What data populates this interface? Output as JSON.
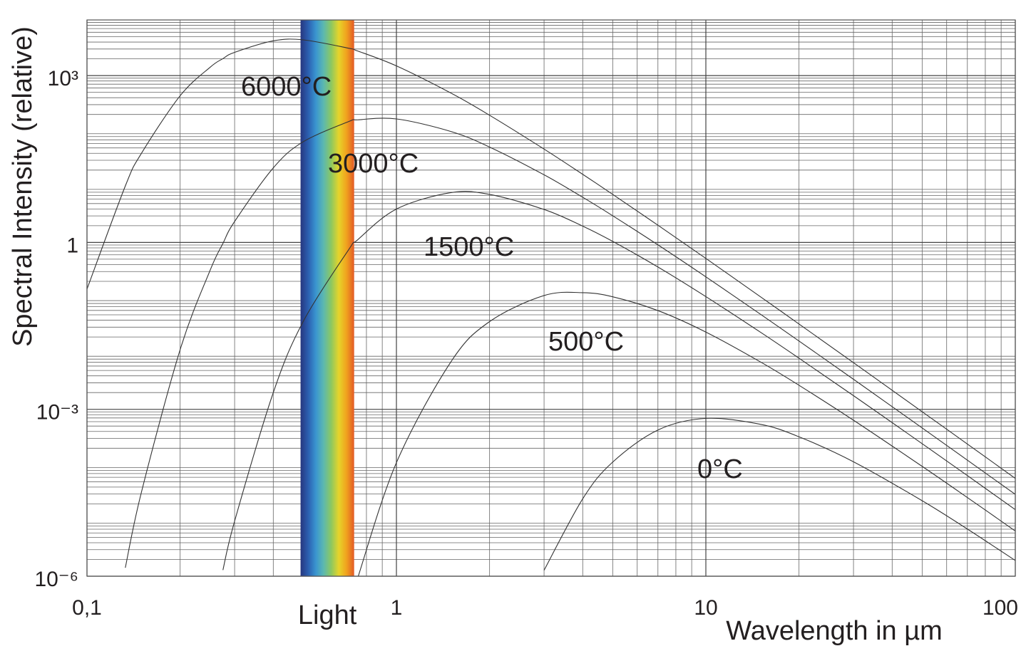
{
  "chart_data": {
    "type": "line",
    "x_label": "Wavelength in µm",
    "y_label": "Spectral Intensity (relative)",
    "x": [
      0.1,
      0.133,
      0.15,
      0.2,
      0.25,
      0.275,
      0.3,
      0.4,
      0.5,
      0.7,
      0.75,
      1,
      1.5,
      2,
      3,
      4,
      5,
      7,
      10,
      15,
      20,
      30,
      50,
      70,
      100
    ],
    "series": [
      {
        "name": "6000°C",
        "color": "#333333",
        "values": [
          0.145,
          10.35,
          40.1,
          434,
          1411,
          2018,
          2617,
          4215,
          4379,
          3104,
          2762,
          1492,
          484.8,
          193.5,
          47.7,
          16.78,
          7.31,
          2.04,
          0.516,
          0.106,
          0.0342,
          0.00689,
          0.000907,
          0.000238,
          5.73e-05
        ]
      },
      {
        "name": "3000°C",
        "color": "#333333",
        "values": [
          null,
          1.42e-06,
          3.27e-05,
          0.01183,
          0.316,
          0.961,
          2.38,
          21.9,
          64.7,
          148.6,
          160.1,
          166.0,
          98.8,
          51.9,
          16.45,
          6.49,
          3.02,
          0.906,
          0.241,
          0.0514,
          0.01691,
          0.00347,
          0.000463,
          0.0001221,
          2.96e-05
        ]
      },
      {
        "name": "1500°C",
        "color": "#333333",
        "values": [
          null,
          null,
          null,
          null,
          null,
          1.29e-06,
          9.79e-06,
          0.002,
          0.0381,
          0.733,
          1.121,
          3.98,
          7.87,
          7.31,
          3.92,
          1.966,
          1.046,
          0.362,
          0.1063,
          0.0244,
          0.0083,
          0.001762,
          0.0002415,
          6.44e-05,
          1.573e-05
        ]
      },
      {
        "name": "500°C",
        "color": "#333333",
        "values": [
          null,
          null,
          null,
          null,
          null,
          null,
          null,
          null,
          null,
          null,
          9.41e-07,
          0.00011,
          0.00714,
          0.0378,
          0.111,
          0.125,
          0.1055,
          0.0596,
          0.0245,
          0.00713,
          0.002706,
          0.000637,
          9.44e-05,
          2.598e-05,
          6.5e-06
        ]
      },
      {
        "name": "0°C",
        "color": "#333333",
        "values": [
          null,
          null,
          null,
          null,
          null,
          null,
          null,
          null,
          null,
          null,
          null,
          null,
          null,
          null,
          1.28e-06,
          2.465e-05,
          0.0001126,
          0.000425,
          0.000688,
          0.000538,
          0.000321,
          0.0001141,
          2.277e-05,
          7.05e-06,
          1.916e-06
        ]
      }
    ],
    "xlim": [
      0.1,
      100
    ],
    "ylim": [
      1e-06,
      10000
    ],
    "xticks": [
      {
        "value": 0.1,
        "label": "0,1"
      },
      1,
      10,
      100
    ],
    "yticks": [
      {
        "value": 1e-06,
        "label": "10⁻⁶"
      },
      {
        "value": 0.001,
        "label": "10⁻³"
      },
      1,
      {
        "value": 1000,
        "label": "10³"
      }
    ],
    "log_x": true,
    "log_y": true,
    "grid": true,
    "minor_grid": true,
    "band": {
      "label": "Light",
      "range": [
        0.49,
        0.73
      ],
      "colors": [
        "#27367f",
        "#2b5fb0",
        "#3a95d0",
        "#5cb8b0",
        "#8cc860",
        "#e6d42a",
        "#f0a21e",
        "#e25a26"
      ]
    }
  }
}
